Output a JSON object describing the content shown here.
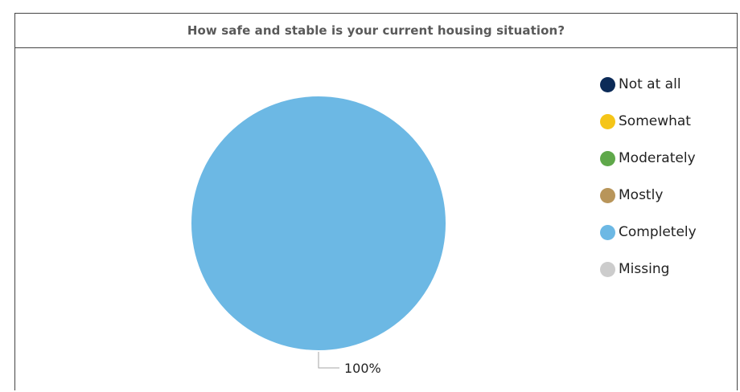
{
  "chart_data": {
    "type": "pie",
    "title": "How safe and stable is your current housing situation?",
    "categories": [
      "Not at all",
      "Somewhat",
      "Moderately",
      "Mostly",
      "Completely",
      "Missing"
    ],
    "values": [
      0,
      0,
      0,
      0,
      100,
      0
    ],
    "colors": [
      "#0b2a57",
      "#f5c518",
      "#5fa84a",
      "#b8955a",
      "#6cb8e4",
      "#cccccc"
    ],
    "data_labels": [
      "",
      "",
      "",
      "",
      "100%",
      ""
    ],
    "legend_position": "right"
  }
}
